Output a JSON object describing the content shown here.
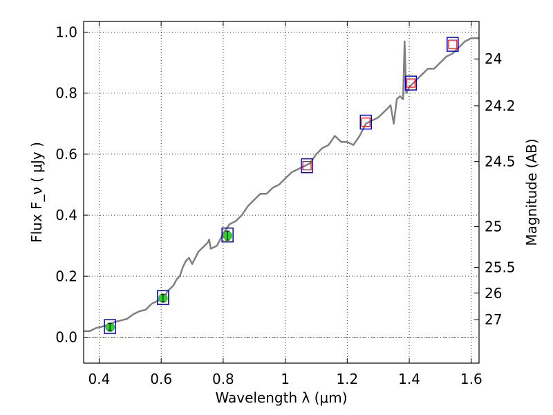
{
  "chart_data": {
    "type": "line",
    "xlabel": "Wavelength  λ (μm)",
    "ylabel": "Flux  F_ν  ( μJy )",
    "y2label": "Magnitude (AB)",
    "xlim": [
      0.35,
      1.625
    ],
    "ylim": [
      -0.085,
      1.035
    ],
    "grid": true,
    "x_ticks": [
      0.4,
      0.6,
      0.8,
      1.0,
      1.2,
      1.4,
      1.6
    ],
    "x_tick_labels": [
      "0.4",
      "0.6",
      "0.8",
      "1",
      "1.2",
      "1.4",
      "1.6"
    ],
    "y_ticks": [
      0.0,
      0.2,
      0.4,
      0.6,
      0.8,
      1.0
    ],
    "y_tick_labels": [
      "0.0",
      "0.2",
      "0.4",
      "0.6",
      "0.8",
      "1.0"
    ],
    "y2_ticks": [
      {
        "value": 24,
        "label": "24"
      },
      {
        "value": 24.2,
        "label": "24.2"
      },
      {
        "value": 24.5,
        "label": "24.5"
      },
      {
        "value": 25,
        "label": "25"
      },
      {
        "value": 25.5,
        "label": "25.5"
      },
      {
        "value": 26,
        "label": "26"
      },
      {
        "value": 27,
        "label": "27"
      }
    ],
    "spectrum": {
      "color": "#808080",
      "x": [
        0.35,
        0.37,
        0.39,
        0.41,
        0.43,
        0.45,
        0.47,
        0.49,
        0.51,
        0.53,
        0.55,
        0.57,
        0.59,
        0.61,
        0.62,
        0.63,
        0.64,
        0.65,
        0.66,
        0.67,
        0.68,
        0.69,
        0.7,
        0.72,
        0.74,
        0.75,
        0.755,
        0.76,
        0.78,
        0.8,
        0.82,
        0.84,
        0.86,
        0.88,
        0.9,
        0.92,
        0.94,
        0.96,
        0.98,
        1.0,
        1.02,
        1.04,
        1.06,
        1.08,
        1.1,
        1.12,
        1.14,
        1.16,
        1.18,
        1.2,
        1.22,
        1.24,
        1.26,
        1.28,
        1.3,
        1.32,
        1.34,
        1.35,
        1.36,
        1.37,
        1.38,
        1.385,
        1.39,
        1.4,
        1.42,
        1.44,
        1.46,
        1.48,
        1.5,
        1.52,
        1.54,
        1.56,
        1.58,
        1.6,
        1.625
      ],
      "y": [
        0.02,
        0.02,
        0.03,
        0.035,
        0.04,
        0.05,
        0.055,
        0.06,
        0.075,
        0.085,
        0.09,
        0.11,
        0.12,
        0.13,
        0.15,
        0.16,
        0.17,
        0.19,
        0.2,
        0.23,
        0.25,
        0.26,
        0.24,
        0.28,
        0.3,
        0.31,
        0.32,
        0.29,
        0.3,
        0.34,
        0.37,
        0.38,
        0.4,
        0.43,
        0.45,
        0.47,
        0.47,
        0.49,
        0.5,
        0.52,
        0.54,
        0.55,
        0.56,
        0.57,
        0.6,
        0.62,
        0.63,
        0.66,
        0.64,
        0.64,
        0.63,
        0.66,
        0.7,
        0.71,
        0.72,
        0.74,
        0.76,
        0.7,
        0.78,
        0.79,
        0.78,
        0.97,
        0.8,
        0.82,
        0.84,
        0.86,
        0.88,
        0.88,
        0.9,
        0.92,
        0.93,
        0.95,
        0.97,
        0.98,
        0.98
      ]
    },
    "photometry": [
      {
        "x": 0.435,
        "y": 0.033,
        "err": 0.012,
        "box_y": 0.035
      },
      {
        "x": 0.606,
        "y": 0.128,
        "err": 0.012,
        "box_y": 0.13
      },
      {
        "x": 0.814,
        "y": 0.333,
        "err": 0.015,
        "box_y": 0.335
      }
    ],
    "model_points": [
      {
        "x": 1.07,
        "y": 0.562
      },
      {
        "x": 1.26,
        "y": 0.705
      },
      {
        "x": 1.405,
        "y": 0.833
      },
      {
        "x": 1.54,
        "y": 0.96
      }
    ],
    "colors": {
      "box": "#0000cc",
      "marker": "#33cc33",
      "model": "#ff0000"
    }
  }
}
